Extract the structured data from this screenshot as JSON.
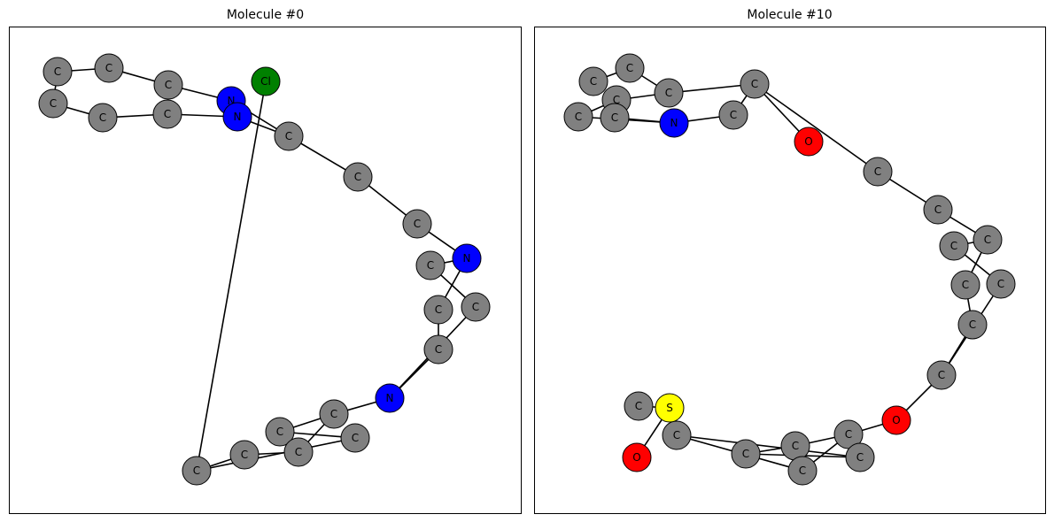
{
  "colors": {
    "C": "#808080",
    "N": "#0000ff",
    "O": "#ff0000",
    "S": "#ffff00",
    "Cl": "#008000"
  },
  "panels": [
    {
      "title": "Molecule #0",
      "atoms": [
        "C",
        "C",
        "C",
        "C",
        "C",
        "C",
        "N",
        "N",
        "C",
        "C",
        "C",
        "N",
        "C",
        "C",
        "C",
        "C",
        "N",
        "C",
        "C",
        "C",
        "C",
        "C",
        "C",
        "Cl"
      ],
      "bonds": [
        [
          0,
          1
        ],
        [
          1,
          2
        ],
        [
          2,
          6
        ],
        [
          0,
          3
        ],
        [
          3,
          4
        ],
        [
          4,
          5
        ],
        [
          5,
          7
        ],
        [
          6,
          8
        ],
        [
          7,
          8
        ],
        [
          8,
          9
        ],
        [
          9,
          10
        ],
        [
          10,
          11
        ],
        [
          11,
          12
        ],
        [
          12,
          13
        ],
        [
          11,
          14
        ],
        [
          14,
          15
        ],
        [
          13,
          16
        ],
        [
          15,
          16
        ],
        [
          16,
          17
        ],
        [
          17,
          18
        ],
        [
          18,
          19
        ],
        [
          17,
          20
        ],
        [
          20,
          21
        ],
        [
          19,
          22
        ],
        [
          21,
          22
        ],
        [
          22,
          23
        ]
      ]
    },
    {
      "title": "Molecule #10",
      "atoms": [
        "C",
        "C",
        "C",
        "C",
        "C",
        "C",
        "N",
        "C",
        "C",
        "O",
        "C",
        "C",
        "C",
        "C",
        "C",
        "C",
        "C",
        "C",
        "O",
        "C",
        "C",
        "C",
        "C",
        "C",
        "C",
        "S",
        "C",
        "O",
        "O"
      ],
      "bonds": [
        [
          0,
          1
        ],
        [
          1,
          4
        ],
        [
          4,
          8
        ],
        [
          2,
          3
        ],
        [
          3,
          4
        ],
        [
          2,
          6
        ],
        [
          5,
          6
        ],
        [
          6,
          7
        ],
        [
          7,
          8
        ],
        [
          8,
          9
        ],
        [
          8,
          10
        ],
        [
          10,
          11
        ],
        [
          11,
          12
        ],
        [
          12,
          13
        ],
        [
          13,
          14
        ],
        [
          12,
          15
        ],
        [
          15,
          16
        ],
        [
          14,
          17
        ],
        [
          16,
          17
        ],
        [
          17,
          18
        ],
        [
          18,
          19
        ],
        [
          19,
          20
        ],
        [
          20,
          21
        ],
        [
          21,
          22
        ],
        [
          19,
          23
        ],
        [
          23,
          24
        ],
        [
          22,
          24
        ],
        [
          24,
          25
        ],
        [
          25,
          26
        ],
        [
          25,
          27
        ],
        [
          25,
          28
        ]
      ]
    }
  ]
}
